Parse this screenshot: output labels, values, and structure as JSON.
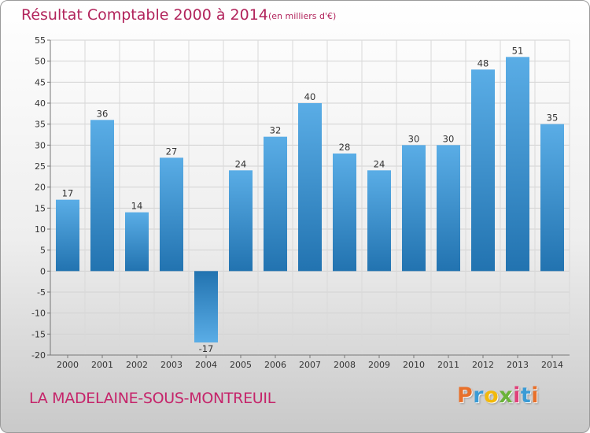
{
  "title": "Résultat Comptable 2000 à 2014",
  "unit_note": "(en milliers d'€)",
  "footer": {
    "city": "LA MADELAINE-SOUS-MONTREUIL",
    "logo_letters": [
      "P",
      "r",
      "o",
      "x",
      "i",
      "t",
      "i"
    ],
    "logo_colors": [
      "#e8702a",
      "#3a9bd5",
      "#f2b90c",
      "#6bb33a",
      "#e0407a",
      "#3a9bd5",
      "#e8702a"
    ]
  },
  "chart_data": {
    "type": "bar",
    "title": "Résultat Comptable 2000 à 2014",
    "ylabel": "",
    "xlabel": "",
    "categories": [
      "2000",
      "2001",
      "2002",
      "2003",
      "2004",
      "2005",
      "2006",
      "2007",
      "2008",
      "2009",
      "2010",
      "2011",
      "2012",
      "2013",
      "2014"
    ],
    "values": [
      17,
      36,
      14,
      27,
      -17,
      24,
      32,
      40,
      28,
      24,
      30,
      30,
      48,
      51,
      35
    ],
    "value_labels": [
      "17",
      "36",
      "14",
      "27",
      "-17",
      "24",
      "32",
      "40",
      "28",
      "24",
      "30",
      "30",
      "48",
      "51",
      "35"
    ],
    "ylim": [
      -20,
      55
    ],
    "yticks": [
      -20,
      -15,
      -10,
      -5,
      0,
      5,
      10,
      15,
      20,
      25,
      30,
      35,
      40,
      45,
      50,
      55
    ],
    "grid": true,
    "bar_color_top": "#5aade6",
    "bar_color_bottom": "#2273b0"
  }
}
